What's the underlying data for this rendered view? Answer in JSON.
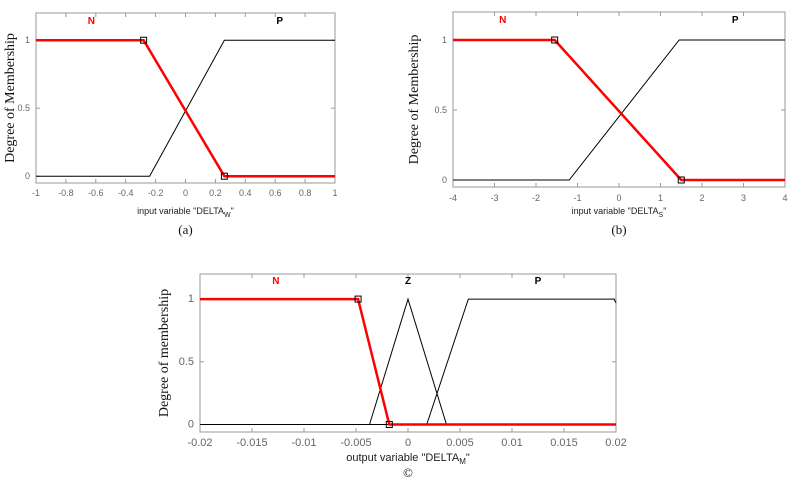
{
  "chart_data": [
    {
      "type": "line",
      "caption": "(a)",
      "xlabel": {
        "prefix": "input variable \"DELTA",
        "sub": "W",
        "suffix": "\""
      },
      "ylabel": "Degree of Membership",
      "xlim": [
        -1,
        1
      ],
      "ylim": [
        -0.05,
        1.2
      ],
      "xticks": [
        -1,
        -0.8,
        -0.6,
        -0.4,
        -0.2,
        0,
        0.2,
        0.4,
        0.6,
        0.8,
        1
      ],
      "xtick_labels": [
        "-1",
        "-0.8",
        "-0.6",
        "-0.4",
        "-0.2",
        "0",
        "0.2",
        "0.4",
        "0.6",
        "0.8",
        "1"
      ],
      "yticks": [
        0,
        0.5,
        1
      ],
      "ytick_labels": [
        "0",
        "0.5",
        "1"
      ],
      "series": [
        {
          "name": "N",
          "color": "#ff0000",
          "highlighted": true,
          "label_x": -0.63,
          "points": [
            [
              -1,
              1
            ],
            [
              -0.28,
              1
            ],
            [
              0.26,
              0
            ],
            [
              1,
              0
            ]
          ],
          "markers": [
            [
              -0.28,
              1
            ],
            [
              0.26,
              0
            ]
          ]
        },
        {
          "name": "P",
          "color": "#000000",
          "highlighted": false,
          "label_x": 0.63,
          "points": [
            [
              -1,
              0
            ],
            [
              -0.24,
              0
            ],
            [
              0.26,
              1
            ],
            [
              1,
              1
            ]
          ],
          "markers": []
        }
      ]
    },
    {
      "type": "line",
      "caption": "(b)",
      "xlabel": {
        "prefix": "input variable \"DELTA",
        "sub": "S",
        "suffix": "\""
      },
      "ylabel": "Degree of Membership",
      "xlim": [
        -4,
        4
      ],
      "ylim": [
        -0.05,
        1.2
      ],
      "xticks": [
        -4,
        -3,
        -2,
        -1,
        0,
        1,
        2,
        3,
        4
      ],
      "xtick_labels": [
        "-4",
        "-3",
        "-2",
        "-1",
        "0",
        "1",
        "2",
        "3",
        "4"
      ],
      "yticks": [
        0,
        0.5,
        1
      ],
      "ytick_labels": [
        "0",
        "0.5",
        "1"
      ],
      "series": [
        {
          "name": "N",
          "color": "#ff0000",
          "highlighted": true,
          "label_x": -2.8,
          "points": [
            [
              -4,
              1
            ],
            [
              -1.55,
              1
            ],
            [
              1.5,
              0
            ],
            [
              4,
              0
            ]
          ],
          "markers": [
            [
              -1.55,
              1
            ],
            [
              1.5,
              0
            ]
          ]
        },
        {
          "name": "P",
          "color": "#000000",
          "highlighted": false,
          "label_x": 2.8,
          "points": [
            [
              -4,
              0
            ],
            [
              -1.2,
              0
            ],
            [
              1.45,
              1
            ],
            [
              4,
              1
            ]
          ],
          "markers": []
        }
      ]
    },
    {
      "type": "line",
      "caption": "©",
      "xlabel": {
        "prefix": "output variable \"DELTA",
        "sub": "M",
        "suffix": "\""
      },
      "ylabel": "Degree of membership",
      "xlim": [
        -0.02,
        0.02
      ],
      "ylim": [
        -0.06,
        1.2
      ],
      "xticks": [
        -0.02,
        -0.015,
        -0.01,
        -0.005,
        0,
        0.005,
        0.01,
        0.015,
        0.02
      ],
      "xtick_labels": [
        "-0.02",
        "-0.015",
        "-0.01",
        "-0.005",
        "0",
        "0.005",
        "0.01",
        "0.015",
        "0.02"
      ],
      "yticks": [
        0,
        0.5,
        1
      ],
      "ytick_labels": [
        "0",
        "0.5",
        "1"
      ],
      "series": [
        {
          "name": "N",
          "color": "#ff0000",
          "highlighted": true,
          "label_x": -0.0127,
          "points": [
            [
              -0.02,
              1
            ],
            [
              -0.0048,
              1
            ],
            [
              -0.0018,
              0
            ],
            [
              0.02,
              0
            ]
          ],
          "markers": [
            [
              -0.0048,
              1
            ],
            [
              -0.0018,
              0
            ]
          ]
        },
        {
          "name": "Z",
          "color": "#000000",
          "highlighted": false,
          "label_x": 0,
          "points": [
            [
              -0.02,
              0
            ],
            [
              -0.0037,
              0
            ],
            [
              0,
              1
            ],
            [
              0.0037,
              0
            ],
            [
              0.02,
              0
            ]
          ],
          "markers": []
        },
        {
          "name": "P",
          "color": "#000000",
          "highlighted": false,
          "label_x": 0.0125,
          "points": [
            [
              -0.02,
              0
            ],
            [
              0.0018,
              0
            ],
            [
              0.0058,
              1
            ],
            [
              0.0198,
              1
            ],
            [
              0.02,
              0.97
            ]
          ],
          "markers": []
        }
      ]
    }
  ]
}
